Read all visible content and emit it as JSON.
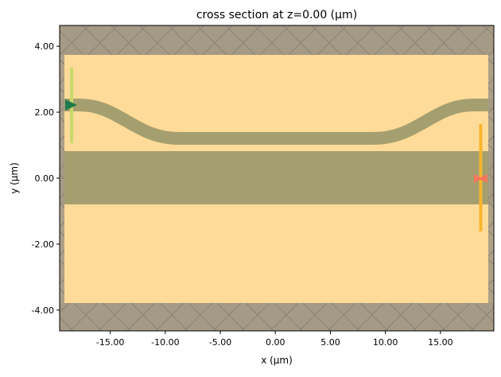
{
  "chart_data": {
    "type": "diagram-plot",
    "title": "cross section at z=0.00 (μm)",
    "xlabel": "x (μm)",
    "ylabel": "y (μm)",
    "xlim": [
      -19.6,
      19.85
    ],
    "ylim": [
      -4.63,
      4.63
    ],
    "xticks": [
      "-15.00",
      "-10.00",
      "-5.00",
      "0.00",
      "5.00",
      "10.00",
      "15.00"
    ],
    "xtick_values": [
      -15,
      -10,
      -5,
      0,
      5,
      10,
      15
    ],
    "yticks": [
      "4.00",
      "2.00",
      "0.00",
      "-2.00",
      "-4.00"
    ],
    "ytick_values": [
      4,
      2,
      0,
      -2,
      -4
    ],
    "grid": false,
    "colors": {
      "background": "#fedb98",
      "structure": "#a59f70",
      "pml": "#a59a85",
      "source": "#c8d96a",
      "source_arrow": "#1e7a4a",
      "monitor": "#fbb52c",
      "monitor_marker": "#f5785a"
    },
    "structures": [
      {
        "name": "straight waveguide",
        "y_range": [
          -0.8,
          0.8
        ]
      },
      {
        "name": "s-bend waveguide",
        "y_ends": 2.2,
        "y_middle": 1.2,
        "width": 0.4
      }
    ],
    "source": {
      "x": -18.5,
      "y_range": [
        1.1,
        3.35
      ],
      "direction": "+x"
    },
    "monitor": {
      "x": 18.8,
      "y_range": [
        -1.6,
        1.65
      ]
    }
  }
}
